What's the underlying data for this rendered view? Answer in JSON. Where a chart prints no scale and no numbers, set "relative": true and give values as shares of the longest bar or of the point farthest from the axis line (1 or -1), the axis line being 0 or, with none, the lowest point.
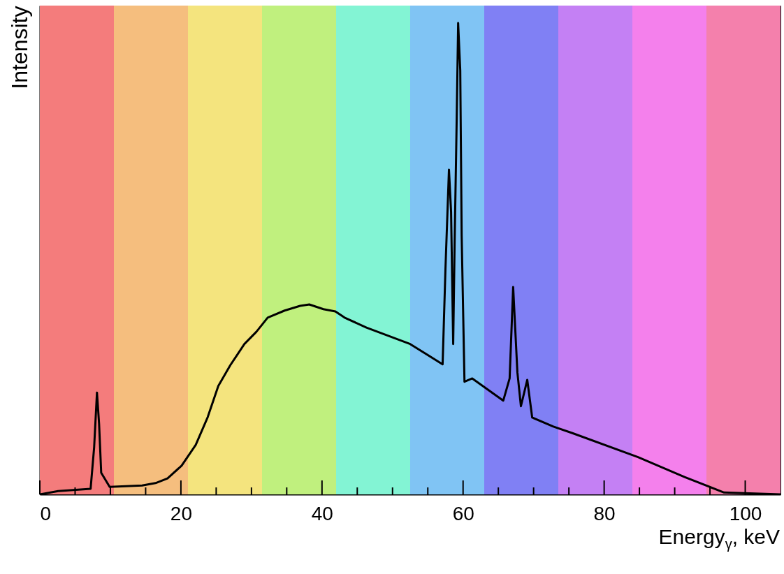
{
  "chart_data": {
    "type": "line",
    "xlabel": "Energy$_{γ}$, keV",
    "ylabel": "Intensity",
    "relative": true,
    "grid": false,
    "xlim": [
      0,
      105
    ],
    "xticks": [
      0,
      {
        "value": 5,
        "label": null
      },
      {
        "value": 10,
        "label": null
      },
      {
        "value": 15,
        "label": null
      },
      20,
      {
        "value": 25,
        "label": null
      },
      {
        "value": 30,
        "label": null
      },
      {
        "value": 35,
        "label": null
      },
      40,
      {
        "value": 45,
        "label": null
      },
      {
        "value": 50,
        "label": null
      },
      {
        "value": 55,
        "label": null
      },
      60,
      {
        "value": 65,
        "label": null
      },
      {
        "value": 70,
        "label": null
      },
      {
        "value": 75,
        "label": null
      },
      80,
      {
        "value": 85,
        "label": null
      },
      {
        "value": 90,
        "label": null
      },
      {
        "value": 95,
        "label": null
      },
      100
    ],
    "bands": [
      {
        "axis": "x",
        "from": 0,
        "to": 10.5,
        "color": "#f47c7c"
      },
      {
        "axis": "x",
        "from": 10.5,
        "to": 21,
        "color": "#f5be7e"
      },
      {
        "axis": "x",
        "from": 21,
        "to": 31.5,
        "color": "#f4e47e"
      },
      {
        "axis": "x",
        "from": 31.5,
        "to": 42,
        "color": "#c0f07e"
      },
      {
        "axis": "x",
        "from": 42,
        "to": 52.5,
        "color": "#83f4d4"
      },
      {
        "axis": "x",
        "from": 52.5,
        "to": 63,
        "color": "#80c4f4"
      },
      {
        "axis": "x",
        "from": 63,
        "to": 73.5,
        "color": "#8080f4"
      },
      {
        "axis": "x",
        "from": 73.5,
        "to": 84,
        "color": "#c480f4"
      },
      {
        "axis": "x",
        "from": 84,
        "to": 94.5,
        "color": "#f480ec"
      },
      {
        "axis": "x",
        "from": 94.5,
        "to": 105,
        "color": "#f480ac"
      }
    ],
    "series": [
      {
        "color": "#000000",
        "x": [
          0,
          2.6,
          7.2,
          7.7,
          8.1,
          8.4,
          8.7,
          9.9,
          14.5,
          16.4,
          18.1,
          20.1,
          22.1,
          23.8,
          25.3,
          27.0,
          29.0,
          30.7,
          32.3,
          34.7,
          36.9,
          38.2,
          40.2,
          41.9,
          43.2,
          46.3,
          52.5,
          57.1,
          57.5,
          58.0,
          58.3,
          58.6,
          58.8,
          59.1,
          59.3,
          59.6,
          59.8,
          60.2,
          61.3,
          65.7,
          66.6,
          67.1,
          67.7,
          68.2,
          69.1,
          69.8,
          72.8,
          75.5,
          84.8,
          91.4,
          97.0,
          105
        ],
        "values": [
          0,
          0.007,
          0.012,
          0.1,
          0.216,
          0.15,
          0.046,
          0.016,
          0.019,
          0.024,
          0.034,
          0.061,
          0.105,
          0.164,
          0.23,
          0.274,
          0.319,
          0.345,
          0.375,
          0.39,
          0.4,
          0.403,
          0.393,
          0.388,
          0.375,
          0.354,
          0.319,
          0.276,
          0.477,
          0.689,
          0.6,
          0.319,
          0.53,
          0.8,
          1,
          0.9,
          0.55,
          0.239,
          0.246,
          0.199,
          0.246,
          0.44,
          0.259,
          0.187,
          0.243,
          0.163,
          0.144,
          0.13,
          0.079,
          0.037,
          0.004,
          0
        ]
      }
    ]
  }
}
